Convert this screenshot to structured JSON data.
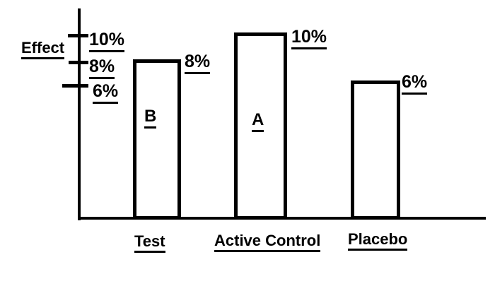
{
  "chart_data": {
    "type": "bar",
    "title": "",
    "ylabel": "Effect",
    "categories": [
      "Test",
      "Active Control",
      "Placebo"
    ],
    "values": [
      8,
      10,
      6
    ],
    "unit": "%",
    "ylim": [
      0,
      12
    ],
    "grid": false,
    "legend": "none",
    "y_ticks": [
      {
        "label": "10%",
        "value": 10
      },
      {
        "label": "8%",
        "value": 8
      },
      {
        "label": "6%",
        "value": 6
      }
    ],
    "bars": [
      {
        "category": "Test",
        "letter": "B",
        "value": 8,
        "value_label": "8%"
      },
      {
        "category": "Active Control",
        "letter": "A",
        "value": 10,
        "value_label": "10%"
      },
      {
        "category": "Placebo",
        "letter": "",
        "value": 6,
        "value_label": "6%"
      }
    ],
    "style": {
      "stroke_color": "#000000",
      "background": "#ffffff",
      "bar_fill": "#ffffff"
    }
  }
}
